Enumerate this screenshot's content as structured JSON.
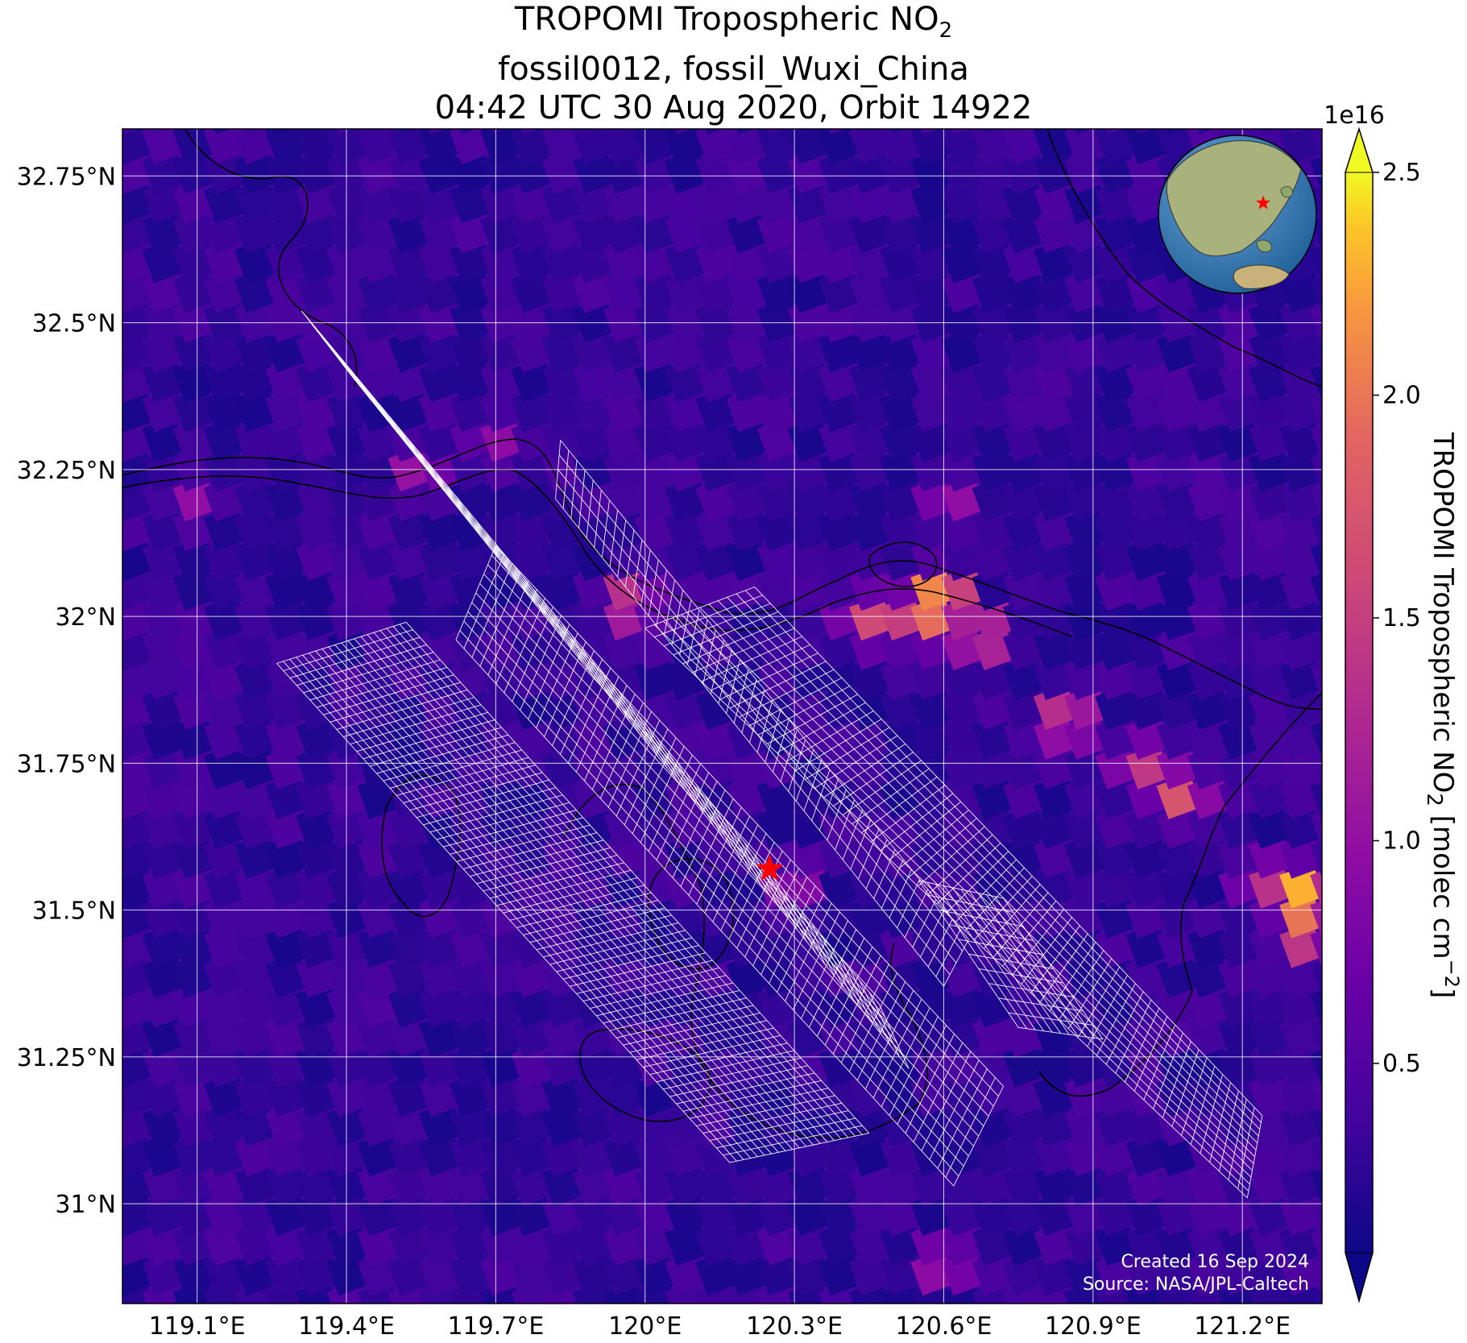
{
  "title": {
    "line1_prefix": "TROPOMI Tropospheric NO",
    "line1_sub": "2",
    "line2": "fossil0012, fossil_Wuxi_China",
    "line3": "04:42 UTC 30 Aug 2020, Orbit 14922"
  },
  "map": {
    "lon_range": [
      118.95,
      121.36
    ],
    "lat_range": [
      30.83,
      32.83
    ],
    "lon_ticks": [
      {
        "value": 119.1,
        "label": "119.1°E"
      },
      {
        "value": 119.4,
        "label": "119.4°E"
      },
      {
        "value": 119.7,
        "label": "119.7°E"
      },
      {
        "value": 120.0,
        "label": "120°E"
      },
      {
        "value": 120.3,
        "label": "120.3°E"
      },
      {
        "value": 120.6,
        "label": "120.6°E"
      },
      {
        "value": 120.9,
        "label": "120.9°E"
      },
      {
        "value": 121.2,
        "label": "121.2°E"
      }
    ],
    "lat_ticks": [
      {
        "value": 32.75,
        "label": "32.75°N"
      },
      {
        "value": 32.5,
        "label": "32.5°N"
      },
      {
        "value": 32.25,
        "label": "32.25°N"
      },
      {
        "value": 32.0,
        "label": "32°N"
      },
      {
        "value": 31.75,
        "label": "31.75°N"
      },
      {
        "value": 31.5,
        "label": "31.5°N"
      },
      {
        "value": 31.25,
        "label": "31.25°N"
      },
      {
        "value": 31.0,
        "label": "31°N"
      }
    ],
    "target": {
      "lon": 120.25,
      "lat": 31.57,
      "marker": "red-star",
      "color": "#ff0000"
    },
    "colormap": "plasma",
    "background_level": 0.3,
    "hotspots": [
      {
        "lon": 120.6,
        "lat": 32.03,
        "value": 2.5
      },
      {
        "lon": 120.55,
        "lat": 32.0,
        "value": 1.8
      },
      {
        "lon": 120.68,
        "lat": 31.97,
        "value": 1.6
      },
      {
        "lon": 120.45,
        "lat": 32.0,
        "value": 1.5
      },
      {
        "lon": 119.97,
        "lat": 32.03,
        "value": 1.5
      },
      {
        "lon": 120.85,
        "lat": 31.83,
        "value": 1.6
      },
      {
        "lon": 121.08,
        "lat": 31.7,
        "value": 1.7
      },
      {
        "lon": 121.0,
        "lat": 31.75,
        "value": 1.4
      },
      {
        "lon": 121.33,
        "lat": 31.53,
        "value": 2.4
      },
      {
        "lon": 121.33,
        "lat": 31.47,
        "value": 1.9
      },
      {
        "lon": 121.25,
        "lat": 31.55,
        "value": 1.2
      },
      {
        "lon": 120.62,
        "lat": 32.2,
        "value": 1.0
      },
      {
        "lon": 119.55,
        "lat": 32.25,
        "value": 1.0
      },
      {
        "lon": 119.1,
        "lat": 32.2,
        "value": 0.9
      },
      {
        "lon": 120.3,
        "lat": 31.55,
        "value": 1.0
      },
      {
        "lon": 119.7,
        "lat": 32.3,
        "value": 0.9
      },
      {
        "lon": 120.6,
        "lat": 30.9,
        "value": 1.1
      }
    ],
    "oco3_footprint_swaths": [
      {
        "corners": [
          [
            119.26,
            31.92
          ],
          [
            119.52,
            31.99
          ],
          [
            120.45,
            31.12
          ],
          [
            120.17,
            31.07
          ]
        ],
        "cols": 20,
        "rows": 68
      },
      {
        "corners": [
          [
            119.31,
            32.52
          ],
          [
            119.41,
            32.41
          ],
          [
            120.53,
            31.23
          ],
          [
            120.47,
            31.34
          ]
        ],
        "cols": 5,
        "rows": 60
      },
      {
        "corners": [
          [
            119.62,
            31.96
          ],
          [
            119.7,
            32.12
          ],
          [
            120.72,
            31.2
          ],
          [
            120.62,
            31.03
          ]
        ],
        "cols": 10,
        "rows": 62
      },
      {
        "corners": [
          [
            119.83,
            32.3
          ],
          [
            119.82,
            32.2
          ],
          [
            120.6,
            31.37
          ],
          [
            120.65,
            31.45
          ]
        ],
        "cols": 4,
        "rows": 50
      },
      {
        "corners": [
          [
            120.0,
            31.98
          ],
          [
            120.22,
            32.05
          ],
          [
            121.24,
            31.15
          ],
          [
            121.21,
            31.01
          ]
        ],
        "cols": 12,
        "rows": 64
      },
      {
        "corners": [
          [
            120.55,
            31.55
          ],
          [
            120.72,
            31.52
          ],
          [
            120.92,
            31.28
          ],
          [
            120.75,
            31.3
          ]
        ],
        "cols": 10,
        "rows": 10
      }
    ]
  },
  "annotations": {
    "created": "Created 16 Sep 2024",
    "source": "Source: NASA/JPL-Caltech"
  },
  "colorbar": {
    "exponent": "1e16",
    "ticks": [
      {
        "value": 0.5,
        "label": "0.5"
      },
      {
        "value": 1.0,
        "label": "1.0"
      },
      {
        "value": 1.5,
        "label": "1.5"
      },
      {
        "value": 2.0,
        "label": "2.0"
      },
      {
        "value": 2.5,
        "label": "2.5"
      }
    ],
    "range": [
      0.075,
      2.5
    ],
    "label_prefix": "TROPOMI Tropospheric NO",
    "label_sub": "2",
    "label_mid": " [molec cm",
    "label_sup": "−2",
    "label_end": "]"
  },
  "inset_globe": {
    "marker": "red-star",
    "ocean_color": "#3a7fb6",
    "land_color": "#a8b27a"
  }
}
